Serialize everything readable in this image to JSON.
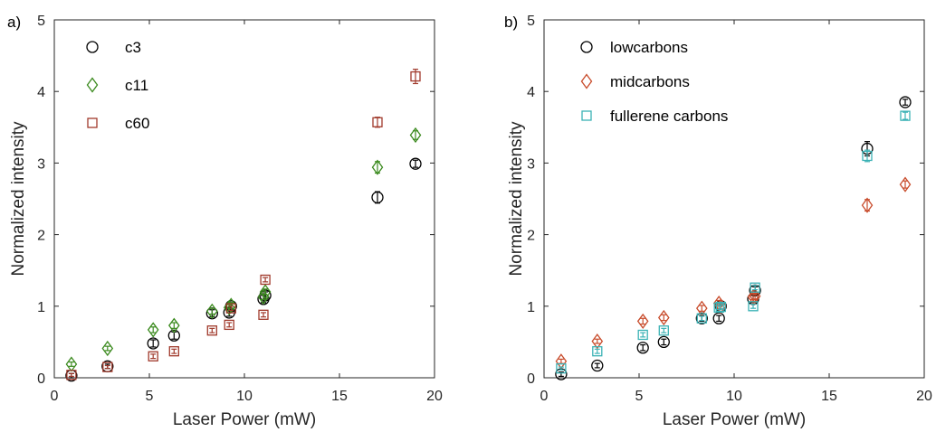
{
  "chart_data": [
    {
      "type": "scatter",
      "panel_label": "a)",
      "xlabel": "Laser Power (mW)",
      "ylabel": "Normalized intensity",
      "xlim": [
        0,
        20
      ],
      "ylim": [
        0,
        5
      ],
      "xticks": [
        "0",
        "5",
        "10",
        "15",
        "20"
      ],
      "yticks": [
        "0",
        "1",
        "2",
        "3",
        "4",
        "5"
      ],
      "grid": false,
      "legend_position": "top-left",
      "series": [
        {
          "name": "c3",
          "marker": "circle",
          "color": "#000000",
          "points": [
            {
              "x": 0.9,
              "y": 0.03,
              "err": 0.03
            },
            {
              "x": 2.8,
              "y": 0.16,
              "err": 0.03
            },
            {
              "x": 5.2,
              "y": 0.48,
              "err": 0.05
            },
            {
              "x": 6.3,
              "y": 0.59,
              "err": 0.05
            },
            {
              "x": 8.3,
              "y": 0.9,
              "err": 0.05
            },
            {
              "x": 9.2,
              "y": 0.91,
              "err": 0.05
            },
            {
              "x": 9.3,
              "y": 1.0,
              "err": 0.05
            },
            {
              "x": 11.0,
              "y": 1.1,
              "err": 0.05
            },
            {
              "x": 11.1,
              "y": 1.15,
              "err": 0.05
            },
            {
              "x": 17.0,
              "y": 2.52,
              "err": 0.08
            },
            {
              "x": 19.0,
              "y": 2.99,
              "err": 0.05
            }
          ]
        },
        {
          "name": "c11",
          "marker": "diamond",
          "color": "#3b8a1e",
          "points": [
            {
              "x": 0.9,
              "y": 0.19,
              "err": 0.03
            },
            {
              "x": 2.8,
              "y": 0.41,
              "err": 0.03
            },
            {
              "x": 5.2,
              "y": 0.67,
              "err": 0.04
            },
            {
              "x": 6.3,
              "y": 0.73,
              "err": 0.04
            },
            {
              "x": 8.3,
              "y": 0.93,
              "err": 0.04
            },
            {
              "x": 9.2,
              "y": 0.98,
              "err": 0.04
            },
            {
              "x": 9.3,
              "y": 1.01,
              "err": 0.04
            },
            {
              "x": 11.0,
              "y": 1.13,
              "err": 0.04
            },
            {
              "x": 11.1,
              "y": 1.2,
              "err": 0.04
            },
            {
              "x": 17.0,
              "y": 2.94,
              "err": 0.08
            },
            {
              "x": 19.0,
              "y": 3.39,
              "err": 0.06
            }
          ]
        },
        {
          "name": "c60",
          "marker": "square",
          "color": "#a0392b",
          "points": [
            {
              "x": 0.9,
              "y": 0.04,
              "err": 0.02
            },
            {
              "x": 2.8,
              "y": 0.15,
              "err": 0.02
            },
            {
              "x": 5.2,
              "y": 0.3,
              "err": 0.03
            },
            {
              "x": 6.3,
              "y": 0.37,
              "err": 0.03
            },
            {
              "x": 8.3,
              "y": 0.66,
              "err": 0.03
            },
            {
              "x": 9.2,
              "y": 0.74,
              "err": 0.03
            },
            {
              "x": 9.3,
              "y": 0.97,
              "err": 0.03
            },
            {
              "x": 11.0,
              "y": 0.88,
              "err": 0.03
            },
            {
              "x": 11.1,
              "y": 1.37,
              "err": 0.03
            },
            {
              "x": 17.0,
              "y": 3.57,
              "err": 0.07
            },
            {
              "x": 19.0,
              "y": 4.21,
              "err": 0.1
            }
          ]
        }
      ]
    },
    {
      "type": "scatter",
      "panel_label": "b)",
      "xlabel": "Laser Power (mW)",
      "ylabel": "Normalized intensity",
      "xlim": [
        0,
        20
      ],
      "ylim": [
        0,
        5
      ],
      "xticks": [
        "0",
        "5",
        "10",
        "15",
        "20"
      ],
      "yticks": [
        "0",
        "1",
        "2",
        "3",
        "4",
        "5"
      ],
      "grid": false,
      "legend_position": "top-left",
      "series": [
        {
          "name": "lowcarbons",
          "marker": "circle",
          "color": "#000000",
          "points": [
            {
              "x": 0.9,
              "y": 0.05,
              "err": 0.03
            },
            {
              "x": 2.8,
              "y": 0.17,
              "err": 0.03
            },
            {
              "x": 5.2,
              "y": 0.42,
              "err": 0.04
            },
            {
              "x": 6.3,
              "y": 0.5,
              "err": 0.04
            },
            {
              "x": 8.3,
              "y": 0.83,
              "err": 0.04
            },
            {
              "x": 9.2,
              "y": 0.83,
              "err": 0.04
            },
            {
              "x": 9.3,
              "y": 1.0,
              "err": 0.04
            },
            {
              "x": 11.0,
              "y": 1.1,
              "err": 0.05
            },
            {
              "x": 11.1,
              "y": 1.22,
              "err": 0.05
            },
            {
              "x": 17.0,
              "y": 3.2,
              "err": 0.1
            },
            {
              "x": 19.0,
              "y": 3.85,
              "err": 0.04
            }
          ]
        },
        {
          "name": "midcarbons",
          "marker": "diamond",
          "color": "#c84b2b",
          "points": [
            {
              "x": 0.9,
              "y": 0.23,
              "err": 0.03
            },
            {
              "x": 2.8,
              "y": 0.51,
              "err": 0.03
            },
            {
              "x": 5.2,
              "y": 0.79,
              "err": 0.04
            },
            {
              "x": 6.3,
              "y": 0.84,
              "err": 0.04
            },
            {
              "x": 8.3,
              "y": 0.97,
              "err": 0.04
            },
            {
              "x": 9.2,
              "y": 1.04,
              "err": 0.04
            },
            {
              "x": 9.3,
              "y": 1.0,
              "err": 0.04
            },
            {
              "x": 11.0,
              "y": 1.13,
              "err": 0.04
            },
            {
              "x": 11.1,
              "y": 1.14,
              "err": 0.04
            },
            {
              "x": 17.0,
              "y": 2.41,
              "err": 0.08
            },
            {
              "x": 19.0,
              "y": 2.7,
              "err": 0.05
            }
          ]
        },
        {
          "name": "fullerene carbons",
          "marker": "square",
          "color": "#3bb2b5",
          "points": [
            {
              "x": 0.9,
              "y": 0.13,
              "err": 0.02
            },
            {
              "x": 2.8,
              "y": 0.37,
              "err": 0.03
            },
            {
              "x": 5.2,
              "y": 0.6,
              "err": 0.03
            },
            {
              "x": 6.3,
              "y": 0.66,
              "err": 0.03
            },
            {
              "x": 8.3,
              "y": 0.83,
              "err": 0.03
            },
            {
              "x": 9.2,
              "y": 0.98,
              "err": 0.03
            },
            {
              "x": 9.3,
              "y": 0.99,
              "err": 0.03
            },
            {
              "x": 11.0,
              "y": 1.0,
              "err": 0.03
            },
            {
              "x": 11.1,
              "y": 1.26,
              "err": 0.03
            },
            {
              "x": 17.0,
              "y": 3.1,
              "err": 0.08
            },
            {
              "x": 19.0,
              "y": 3.66,
              "err": 0.05
            }
          ]
        }
      ]
    }
  ]
}
